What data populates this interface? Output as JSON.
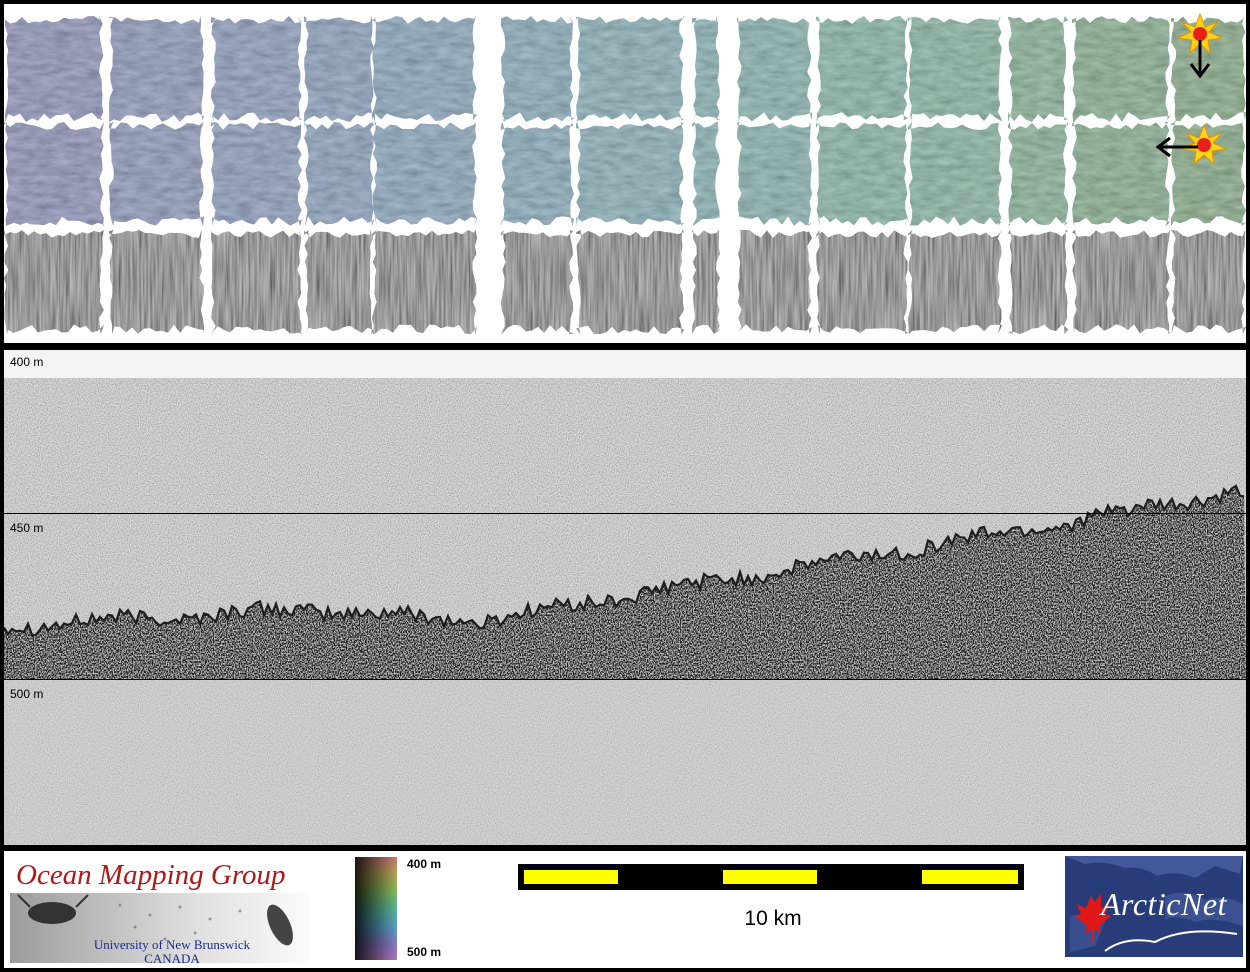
{
  "top_panel": {
    "rows": [
      {
        "name": "bathymetry-row-1"
      },
      {
        "name": "bathymetry-row-2"
      },
      {
        "name": "backscatter-row"
      }
    ],
    "icons": [
      {
        "name": "sun-icon-top",
        "arrow": "arrow-down-icon"
      },
      {
        "name": "sun-icon-bottom",
        "arrow": "arrow-left-icon"
      }
    ]
  },
  "profile": {
    "depth_labels": [
      "400 m",
      "450 m",
      "500 m"
    ]
  },
  "footer": {
    "logo": {
      "title": "Ocean Mapping Group",
      "subtitle_line1": "University of New Brunswick",
      "subtitle_line2": "CANADA"
    },
    "colorbar": {
      "top_label": "400 m",
      "bottom_label": "500 m"
    },
    "scale_bar": {
      "label": "10 km",
      "colors": [
        "#ffff00",
        "#000000"
      ]
    },
    "arcticnet": {
      "text": "ArcticNet",
      "bg_color": "#283c7a",
      "leaf_color": "#e01818"
    }
  }
}
